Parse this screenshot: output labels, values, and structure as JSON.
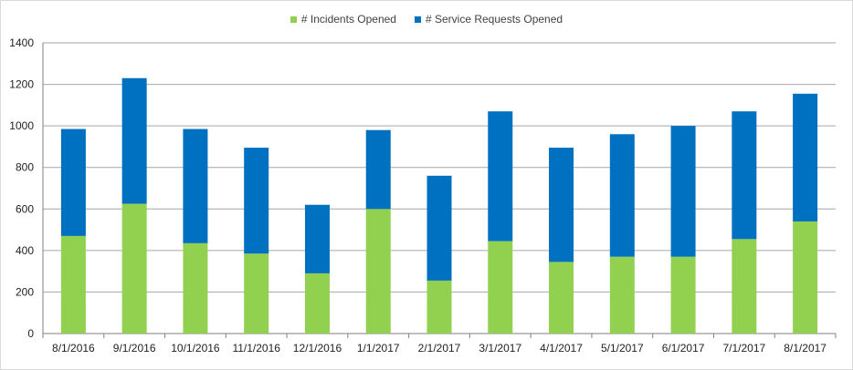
{
  "chart_data": {
    "type": "bar",
    "stacked": true,
    "categories": [
      "8/1/2016",
      "9/1/2016",
      "10/1/2016",
      "11/1/2016",
      "12/1/2016",
      "1/1/2017",
      "2/1/2017",
      "3/1/2017",
      "4/1/2017",
      "5/1/2017",
      "6/1/2017",
      "7/1/2017",
      "8/1/2017"
    ],
    "series": [
      {
        "name": "# Incidents Opened",
        "color": "#92d050",
        "values": [
          470,
          625,
          435,
          385,
          290,
          600,
          255,
          445,
          345,
          370,
          370,
          455,
          540
        ]
      },
      {
        "name": "# Service Requests Opened",
        "color": "#0070c0",
        "values": [
          515,
          605,
          550,
          510,
          330,
          380,
          505,
          625,
          550,
          590,
          630,
          615,
          615
        ]
      }
    ],
    "ylim": [
      0,
      1400
    ],
    "yticks": [
      0,
      200,
      400,
      600,
      800,
      1000,
      1200,
      1400
    ],
    "grid": true,
    "legend_position": "top"
  }
}
